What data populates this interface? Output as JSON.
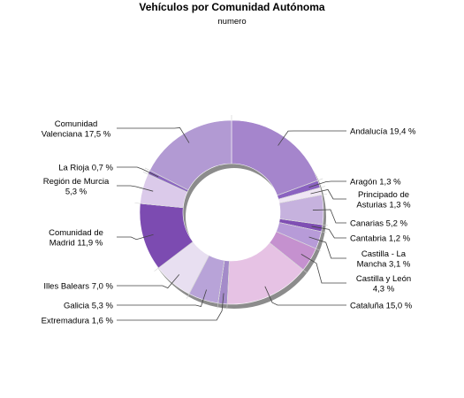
{
  "chart_data": {
    "type": "pie",
    "donut": true,
    "title": "Vehículos por Comunidad Autónoma",
    "subtitle": "numero",
    "slices": [
      {
        "label": [
          "Andalucía 19,4 %"
        ],
        "value": 19.4,
        "color": "#a585cc"
      },
      {
        "label": [
          "Aragón 1,3 %"
        ],
        "value": 1.3,
        "color": "#8a62c0"
      },
      {
        "label": [
          "Principado de",
          "Asturias 1,3 %"
        ],
        "value": 1.3,
        "color": "#efe6f4"
      },
      {
        "label": [
          "Canarias 5,2 %"
        ],
        "value": 5.2,
        "color": "#c6b2de"
      },
      {
        "label": [
          "Cantabria 1,2 %"
        ],
        "value": 1.2,
        "color": "#7f4fb3"
      },
      {
        "label": [
          "Castilla - La",
          "Mancha 3,1 %"
        ],
        "value": 3.1,
        "color": "#b79bd8"
      },
      {
        "label": [
          "Castilla y León",
          "4,3 %"
        ],
        "value": 4.3,
        "color": "#c591cf"
      },
      {
        "label": [
          "Cataluña 15,0 %"
        ],
        "value": 15.0,
        "color": "#e6c2e4"
      },
      {
        "label": [
          "Extremadura 1,6 %"
        ],
        "value": 1.6,
        "color": "#a48bc9"
      },
      {
        "label": [
          "Galicia 5,3 %"
        ],
        "value": 5.3,
        "color": "#b8a3d8"
      },
      {
        "label": [
          "Illes Balears 7,0 %"
        ],
        "value": 7.0,
        "color": "#e8dff1"
      },
      {
        "label": [
          "Comunidad de",
          "Madrid 11,9 %"
        ],
        "value": 11.9,
        "color": "#7c4bb1"
      },
      {
        "label": [
          "Región de Murcia",
          "5,3 %"
        ],
        "value": 5.3,
        "color": "#dbcaea"
      },
      {
        "label": [
          "La Rioja 0,7 %"
        ],
        "value": 0.7,
        "color": "#8c68c0"
      },
      {
        "label": [
          "Comunidad",
          "Valenciana 17,5 %"
        ],
        "value": 17.5,
        "color": "#b29ad3"
      }
    ]
  }
}
